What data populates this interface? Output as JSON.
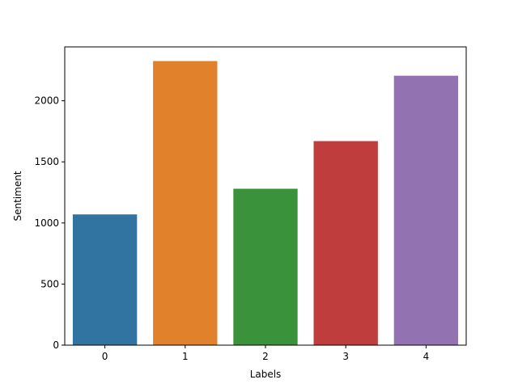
{
  "chart_data": {
    "type": "bar",
    "title": "",
    "xlabel": "Labels",
    "ylabel": "Sentiment",
    "categories": [
      "0",
      "1",
      "2",
      "3",
      "4"
    ],
    "values": [
      1070,
      2325,
      1280,
      1670,
      2205
    ],
    "colors": [
      "#3274a1",
      "#e1812c",
      "#3a923a",
      "#c03d3e",
      "#9372b2"
    ],
    "ylim": [
      0,
      2441
    ],
    "yticks": [
      0,
      500,
      1000,
      1500,
      2000
    ],
    "grid": false,
    "legend": "none"
  }
}
